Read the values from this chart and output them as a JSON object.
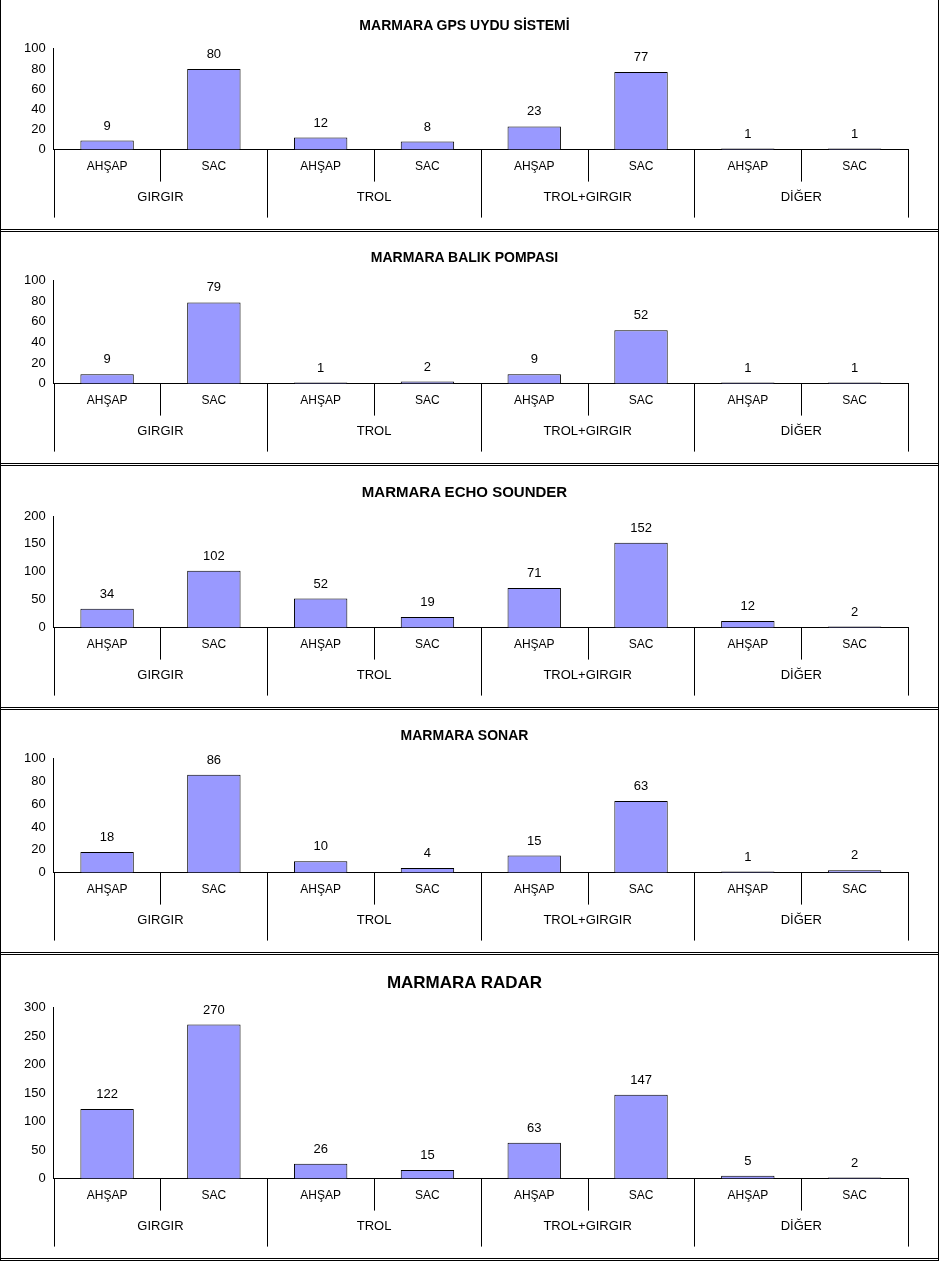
{
  "chart_data": [
    {
      "type": "bar",
      "title": "MARMARA GPS UYDU SİSTEMİ",
      "categories": [
        "AHŞAP",
        "SAC",
        "AHŞAP",
        "SAC",
        "AHŞAP",
        "SAC",
        "AHŞAP",
        "SAC"
      ],
      "values": [
        9,
        80,
        12,
        8,
        23,
        77,
        1,
        1
      ],
      "color": "#9999ff",
      "ylim": [
        0,
        100
      ],
      "yticks": [
        0,
        20,
        40,
        60,
        80,
        100
      ],
      "grid": false,
      "legend": false,
      "data_labels": true,
      "annotations": [
        "GIRGIR",
        "TROL",
        "TROL+GIRGIR",
        "DİĞER"
      ]
    },
    {
      "type": "bar",
      "title": "MARMARA BALIK POMPASI",
      "categories": [
        "AHŞAP",
        "SAC",
        "AHŞAP",
        "SAC",
        "AHŞAP",
        "SAC",
        "AHŞAP",
        "SAC"
      ],
      "values": [
        9,
        79,
        1,
        2,
        9,
        52,
        1,
        1
      ],
      "color": "#9999ff",
      "ylim": [
        0,
        100
      ],
      "yticks": [
        0,
        20,
        40,
        60,
        80,
        100
      ],
      "grid": false,
      "legend": false,
      "data_labels": true,
      "annotations": [
        "GIRGIR",
        "TROL",
        "TROL+GIRGIR",
        "DİĞER"
      ]
    },
    {
      "type": "bar",
      "title": "MARMARA ECHO SOUNDER",
      "categories": [
        "AHŞAP",
        "SAC",
        "AHŞAP",
        "SAC",
        "AHŞAP",
        "SAC",
        "AHŞAP",
        "SAC"
      ],
      "values": [
        34,
        102,
        52,
        19,
        71,
        152,
        12,
        2
      ],
      "color": "#9999ff",
      "ylim": [
        0,
        200
      ],
      "yticks": [
        0,
        50,
        100,
        150,
        200
      ],
      "grid": false,
      "legend": false,
      "data_labels": true,
      "annotations": [
        "GIRGIR",
        "TROL",
        "TROL+GIRGIR",
        "DİĞER"
      ]
    },
    {
      "type": "bar",
      "title": "MARMARA SONAR",
      "categories": [
        "AHŞAP",
        "SAC",
        "AHŞAP",
        "SAC",
        "AHŞAP",
        "SAC",
        "AHŞAP",
        "SAC"
      ],
      "values": [
        18,
        86,
        10,
        4,
        15,
        63,
        1,
        2
      ],
      "color": "#9999ff",
      "ylim": [
        0,
        100
      ],
      "yticks": [
        0,
        20,
        40,
        60,
        80,
        100
      ],
      "grid": false,
      "legend": false,
      "data_labels": true,
      "annotations": [
        "GIRGIR",
        "TROL",
        "TROL+GIRGIR",
        "DİĞER"
      ]
    },
    {
      "type": "bar",
      "title": "MARMARA RADAR",
      "categories": [
        "AHŞAP",
        "SAC",
        "AHŞAP",
        "SAC",
        "AHŞAP",
        "SAC",
        "AHŞAP",
        "SAC"
      ],
      "values": [
        122,
        270,
        26,
        15,
        63,
        147,
        5,
        2
      ],
      "color": "#9999ff",
      "ylim": [
        0,
        300
      ],
      "yticks": [
        0,
        50,
        100,
        150,
        200,
        250,
        300
      ],
      "grid": false,
      "legend": false,
      "data_labels": true,
      "annotations": [
        "GIRGIR",
        "TROL",
        "TROL+GIRGIR",
        "DİĞER"
      ]
    }
  ]
}
